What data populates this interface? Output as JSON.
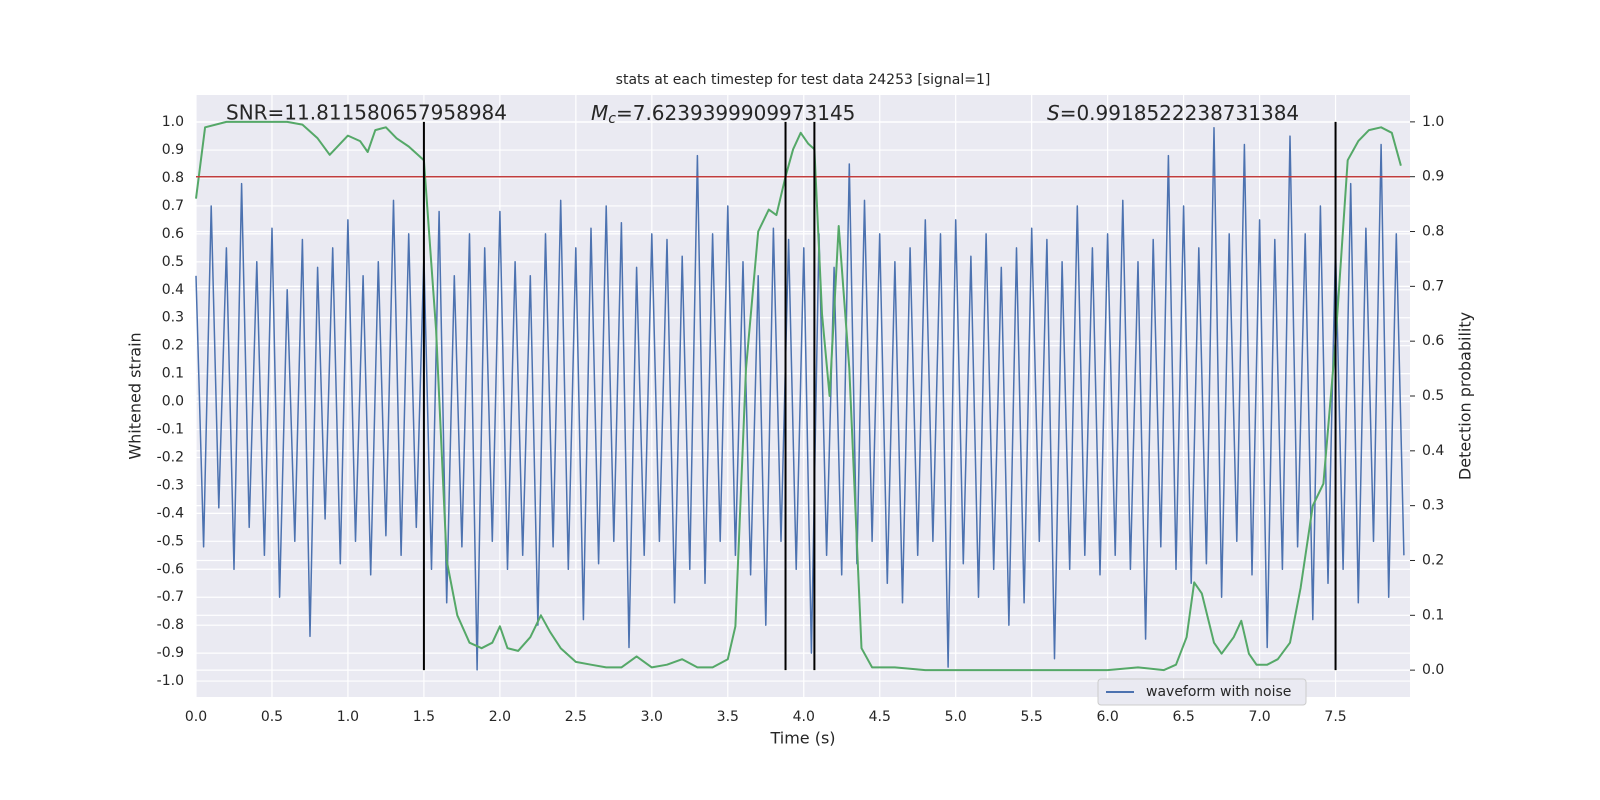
{
  "chart_data": {
    "type": "line",
    "title": "stats at each timestep for test data 24253 [signal=1]",
    "xlabel": "Time (s)",
    "ylabel": "Whitened strain",
    "y2label": "Detection probability",
    "annotations": [
      {
        "text": "SNR=11.811580657958984"
      },
      {
        "symbol": "M",
        "subscript": "c",
        "text": "=7.6239399909973145"
      },
      {
        "symbol": "S",
        "text": "=0.9918522238731384"
      }
    ],
    "xlim": [
      0,
      7.99
    ],
    "xticks": [
      {
        "value": 0,
        "label": "0.0"
      },
      0.5,
      {
        "value": 1,
        "label": "1.0"
      },
      1.5,
      {
        "value": 2,
        "label": "2.0"
      },
      2.5,
      {
        "value": 3,
        "label": "3.0"
      },
      3.5,
      {
        "value": 4,
        "label": "4.0"
      },
      4.5,
      {
        "value": 5,
        "label": "5.0"
      },
      5.5,
      {
        "value": 6,
        "label": "6.0"
      },
      6.5,
      {
        "value": 7,
        "label": "7.0"
      },
      7.5
    ],
    "ylim": [
      -1.057,
      1.097
    ],
    "yticks": [
      {
        "value": -1,
        "label": "-1.0"
      },
      -0.9,
      -0.8,
      -0.7,
      -0.6,
      -0.5,
      -0.4,
      -0.3,
      -0.2,
      -0.1,
      {
        "value": 0,
        "label": "0.0"
      },
      0.1,
      0.2,
      0.3,
      0.4,
      0.5,
      0.6,
      0.7,
      0.8,
      0.9,
      {
        "value": 1,
        "label": "1.0"
      }
    ],
    "y2lim": [
      -0.049,
      1.049
    ],
    "y2ticks": [
      {
        "value": 0,
        "label": "0.0"
      },
      0.1,
      0.2,
      0.3,
      0.4,
      0.5,
      0.6,
      0.7,
      0.8,
      0.9,
      {
        "value": 1,
        "label": "1.0"
      }
    ],
    "grid": true,
    "legend": "lower right",
    "vlines": {
      "color": "#000000",
      "x": [
        1.5,
        3.88,
        4.07,
        7.5
      ]
    },
    "hline": {
      "color": "#c03d3e",
      "axis": "y2",
      "value": 0.9
    },
    "series": [
      {
        "name": "waveform with noise",
        "color": "#4c72b0",
        "x": [
          0.0,
          0.05,
          0.1,
          0.15,
          0.2,
          0.25,
          0.3,
          0.35,
          0.4,
          0.45,
          0.5,
          0.55,
          0.6,
          0.65,
          0.7,
          0.75,
          0.8,
          0.85,
          0.9,
          0.95,
          1.0,
          1.05,
          1.1,
          1.15,
          1.2,
          1.25,
          1.3,
          1.35,
          1.4,
          1.45,
          1.5,
          1.55,
          1.6,
          1.65,
          1.7,
          1.75,
          1.8,
          1.85,
          1.9,
          1.95,
          2.0,
          2.05,
          2.1,
          2.15,
          2.2,
          2.25,
          2.3,
          2.35,
          2.4,
          2.45,
          2.5,
          2.55,
          2.6,
          2.65,
          2.7,
          2.75,
          2.8,
          2.85,
          2.9,
          2.95,
          3.0,
          3.05,
          3.1,
          3.15,
          3.2,
          3.25,
          3.3,
          3.35,
          3.4,
          3.45,
          3.5,
          3.55,
          3.6,
          3.65,
          3.7,
          3.75,
          3.8,
          3.85,
          3.9,
          3.95,
          4.0,
          4.05,
          4.1,
          4.15,
          4.2,
          4.25,
          4.3,
          4.35,
          4.4,
          4.45,
          4.5,
          4.55,
          4.6,
          4.65,
          4.7,
          4.75,
          4.8,
          4.85,
          4.9,
          4.95,
          5.0,
          5.05,
          5.1,
          5.15,
          5.2,
          5.25,
          5.3,
          5.35,
          5.4,
          5.45,
          5.5,
          5.55,
          5.6,
          5.65,
          5.7,
          5.75,
          5.8,
          5.85,
          5.9,
          5.95,
          6.0,
          6.05,
          6.1,
          6.15,
          6.2,
          6.25,
          6.3,
          6.35,
          6.4,
          6.45,
          6.5,
          6.55,
          6.6,
          6.65,
          6.7,
          6.75,
          6.8,
          6.85,
          6.9,
          6.95,
          7.0,
          7.05,
          7.1,
          7.15,
          7.2,
          7.25,
          7.3,
          7.35,
          7.4,
          7.45,
          7.5,
          7.55,
          7.6,
          7.65,
          7.7,
          7.75,
          7.8,
          7.85,
          7.9,
          7.95
        ],
        "values": [
          0.45,
          -0.52,
          0.7,
          -0.38,
          0.55,
          -0.6,
          0.78,
          -0.45,
          0.5,
          -0.55,
          0.62,
          -0.7,
          0.4,
          -0.5,
          0.58,
          -0.84,
          0.48,
          -0.42,
          0.55,
          -0.58,
          0.65,
          -0.5,
          0.45,
          -0.62,
          0.5,
          -0.48,
          0.72,
          -0.55,
          0.6,
          -0.45,
          0.52,
          -0.6,
          0.68,
          -0.72,
          0.45,
          -0.52,
          0.6,
          -0.96,
          0.55,
          -0.5,
          0.68,
          -0.6,
          0.5,
          -0.55,
          0.45,
          -0.8,
          0.6,
          -0.52,
          0.72,
          -0.6,
          0.55,
          -0.78,
          0.62,
          -0.58,
          0.7,
          -0.5,
          0.64,
          -0.88,
          0.48,
          -0.55,
          0.6,
          -0.5,
          0.58,
          -0.72,
          0.52,
          -0.6,
          0.88,
          -0.65,
          0.6,
          -0.5,
          0.7,
          -0.55,
          0.5,
          -0.62,
          0.45,
          -0.8,
          0.62,
          -0.5,
          0.58,
          -0.6,
          0.55,
          -0.9,
          0.6,
          -0.55,
          0.48,
          -0.62,
          0.85,
          -0.58,
          0.72,
          -0.5,
          0.6,
          -0.65,
          0.5,
          -0.72,
          0.55,
          -0.55,
          0.65,
          -0.5,
          0.6,
          -0.95,
          0.65,
          -0.58,
          0.52,
          -0.7,
          0.6,
          -0.6,
          0.48,
          -0.8,
          0.55,
          -0.72,
          0.62,
          -0.5,
          0.58,
          -0.92,
          0.5,
          -0.6,
          0.7,
          -0.55,
          0.55,
          -0.62,
          0.6,
          -0.55,
          0.72,
          -0.6,
          0.5,
          -0.85,
          0.58,
          -0.52,
          0.88,
          -0.6,
          0.7,
          -0.65,
          0.55,
          -0.58,
          0.98,
          -0.7,
          0.6,
          -0.5,
          0.92,
          -0.62,
          0.65,
          -0.88,
          0.58,
          -0.6,
          0.95,
          -0.52,
          0.6,
          -0.78,
          0.7,
          -0.65,
          0.55,
          -0.6,
          0.78,
          -0.72,
          0.62,
          -0.5,
          0.92,
          -0.7,
          0.6,
          -0.55
        ]
      },
      {
        "color": "#55a868",
        "axis": "y2",
        "x": [
          0,
          0.06,
          0.2,
          0.4,
          0.6,
          0.7,
          0.8,
          0.88,
          1.0,
          1.08,
          1.13,
          1.18,
          1.25,
          1.32,
          1.4,
          1.5,
          1.58,
          1.65,
          1.72,
          1.8,
          1.88,
          1.95,
          2.0,
          2.05,
          2.12,
          2.2,
          2.27,
          2.33,
          2.4,
          2.5,
          2.6,
          2.7,
          2.8,
          2.9,
          3.0,
          3.1,
          3.2,
          3.3,
          3.4,
          3.5,
          3.55,
          3.62,
          3.7,
          3.77,
          3.82,
          3.88,
          3.93,
          3.98,
          4.03,
          4.07,
          4.12,
          4.17,
          4.23,
          4.3,
          4.38,
          4.45,
          4.6,
          4.8,
          5.0,
          5.2,
          5.5,
          6.0,
          6.2,
          6.37,
          6.45,
          6.52,
          6.57,
          6.62,
          6.7,
          6.75,
          6.83,
          6.88,
          6.93,
          6.98,
          7.05,
          7.12,
          7.2,
          7.27,
          7.35,
          7.42,
          7.5,
          7.58,
          7.65,
          7.72,
          7.8,
          7.87,
          7.93
        ],
        "values": [
          0.86,
          0.99,
          1.0,
          1.0,
          1.0,
          0.995,
          0.97,
          0.94,
          0.975,
          0.965,
          0.945,
          0.985,
          0.99,
          0.97,
          0.955,
          0.93,
          0.62,
          0.2,
          0.1,
          0.05,
          0.04,
          0.05,
          0.08,
          0.04,
          0.035,
          0.06,
          0.1,
          0.07,
          0.04,
          0.015,
          0.01,
          0.005,
          0.005,
          0.025,
          0.005,
          0.01,
          0.02,
          0.005,
          0.005,
          0.02,
          0.08,
          0.55,
          0.8,
          0.84,
          0.83,
          0.9,
          0.95,
          0.98,
          0.96,
          0.95,
          0.65,
          0.5,
          0.81,
          0.55,
          0.04,
          0.005,
          0.005,
          0.0,
          0.0,
          0.0,
          0.0,
          0.0,
          0.005,
          0.0,
          0.01,
          0.06,
          0.16,
          0.14,
          0.05,
          0.03,
          0.06,
          0.09,
          0.03,
          0.01,
          0.01,
          0.02,
          0.05,
          0.15,
          0.3,
          0.34,
          0.6,
          0.93,
          0.965,
          0.985,
          0.99,
          0.98,
          0.92
        ]
      }
    ]
  }
}
